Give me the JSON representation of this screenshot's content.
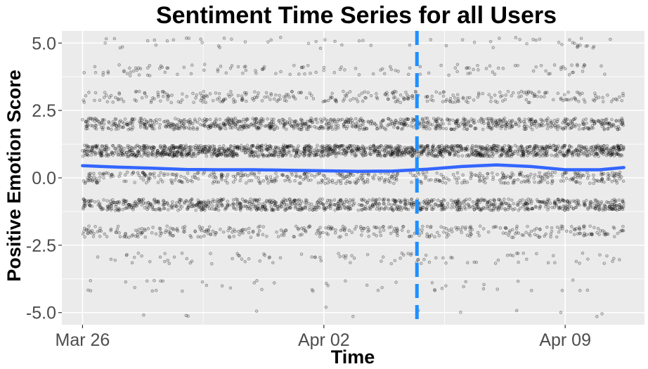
{
  "chart_data": {
    "type": "scatter",
    "title": "Sentiment Time Series for all Users",
    "xlabel": "Time",
    "ylabel": "Positive Emotion Score",
    "x_range": [
      "2020-03-25T12:00",
      "2020-04-11T00:00"
    ],
    "xlim_days": [
      -0.6,
      16.3
    ],
    "ylim": [
      -5.45,
      5.45
    ],
    "x_ticks": [
      {
        "label": "Mar 26",
        "day": 0
      },
      {
        "label": "Apr 02",
        "day": 7
      },
      {
        "label": "Apr 09",
        "day": 14
      }
    ],
    "y_ticks": [
      {
        "label": "5.0",
        "value": 5.0
      },
      {
        "label": "2.5",
        "value": 2.5
      },
      {
        "label": "0.0",
        "value": 0.0
      },
      {
        "label": "-2.5",
        "value": -2.5
      },
      {
        "label": "-5.0",
        "value": -5.0
      }
    ],
    "scatter_levels": [
      {
        "score": 5,
        "density": 60
      },
      {
        "score": 4,
        "density": 130
      },
      {
        "score": 3,
        "density": 320
      },
      {
        "score": 2,
        "density": 900
      },
      {
        "score": 1,
        "density": 1500
      },
      {
        "score": 0,
        "density": 500
      },
      {
        "score": -1,
        "density": 1000
      },
      {
        "score": -2,
        "density": 380
      },
      {
        "score": -3,
        "density": 100
      },
      {
        "score": -4,
        "density": 45
      },
      {
        "score": -5,
        "density": 12
      }
    ],
    "trend_line": {
      "color": "#3366ff",
      "points": [
        {
          "day": 0,
          "value": 0.45
        },
        {
          "day": 1,
          "value": 0.4
        },
        {
          "day": 2,
          "value": 0.36
        },
        {
          "day": 3,
          "value": 0.31
        },
        {
          "day": 4,
          "value": 0.3
        },
        {
          "day": 5,
          "value": 0.3
        },
        {
          "day": 6,
          "value": 0.28
        },
        {
          "day": 7,
          "value": 0.26
        },
        {
          "day": 8,
          "value": 0.24
        },
        {
          "day": 9,
          "value": 0.25
        },
        {
          "day": 10,
          "value": 0.32
        },
        {
          "day": 11,
          "value": 0.42
        },
        {
          "day": 12,
          "value": 0.48
        },
        {
          "day": 13,
          "value": 0.42
        },
        {
          "day": 14,
          "value": 0.3
        },
        {
          "day": 15,
          "value": 0.3
        },
        {
          "day": 15.7,
          "value": 0.38
        }
      ]
    },
    "vline": {
      "day": 9.7,
      "color": "#1e90ff",
      "style": "dashed"
    },
    "colors": {
      "panel_background": "#ebebeb",
      "grid": "#ffffff",
      "points": "#000000"
    },
    "grid": true,
    "legend": "none"
  }
}
